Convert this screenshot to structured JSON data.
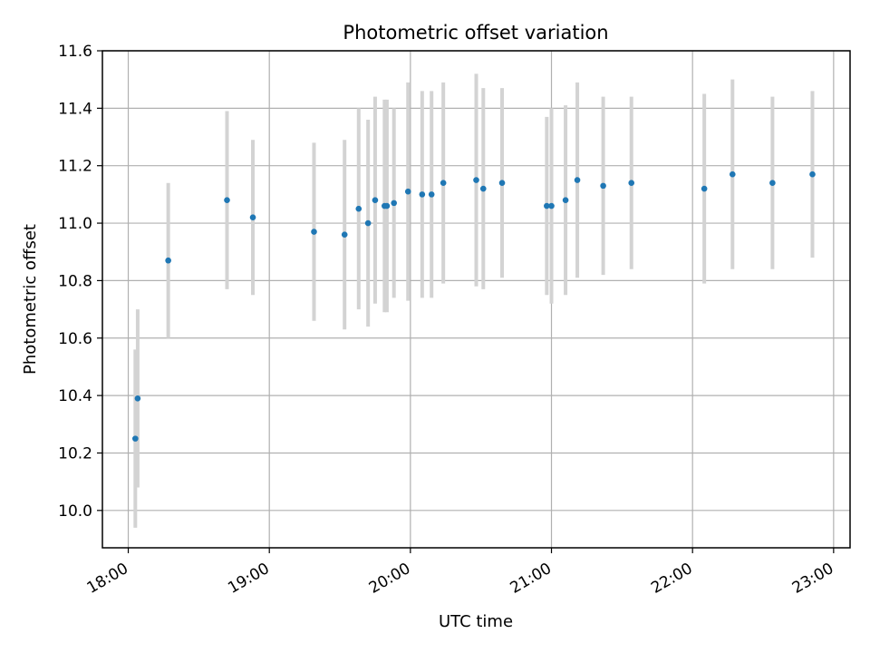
{
  "chart_data": {
    "type": "scatter",
    "title": "Photometric offset variation",
    "xlabel": "UTC time",
    "ylabel": "Photometric offset",
    "x_unit": "UTC time (HH:MM)",
    "xlim": [
      "17:49",
      "23:07"
    ],
    "ylim": [
      9.87,
      11.6
    ],
    "x_ticks": [
      "18:00",
      "19:00",
      "20:00",
      "21:00",
      "22:00",
      "23:00"
    ],
    "y_ticks": [
      "10.0",
      "10.2",
      "10.4",
      "10.6",
      "10.8",
      "11.0",
      "11.2",
      "11.4",
      "11.6"
    ],
    "grid": true,
    "marker_color": "#1f77b4",
    "errorbar_color": "#d3d3d3",
    "series": [
      {
        "points": [
          {
            "x": "18:03",
            "y": 10.25,
            "yerr": 0.31
          },
          {
            "x": "18:04",
            "y": 10.39,
            "yerr": 0.31
          },
          {
            "x": "18:17",
            "y": 10.87,
            "yerr": 0.27
          },
          {
            "x": "18:42",
            "y": 11.08,
            "yerr": 0.31
          },
          {
            "x": "18:53",
            "y": 11.02,
            "yerr": 0.27
          },
          {
            "x": "19:19",
            "y": 10.97,
            "yerr": 0.31
          },
          {
            "x": "19:32",
            "y": 10.96,
            "yerr": 0.33
          },
          {
            "x": "19:38",
            "y": 11.05,
            "yerr": 0.35
          },
          {
            "x": "19:42",
            "y": 11.0,
            "yerr": 0.36
          },
          {
            "x": "19:45",
            "y": 11.08,
            "yerr": 0.36
          },
          {
            "x": "19:49",
            "y": 11.06,
            "yerr": 0.37
          },
          {
            "x": "19:50",
            "y": 11.06,
            "yerr": 0.37
          },
          {
            "x": "19:53",
            "y": 11.07,
            "yerr": 0.33
          },
          {
            "x": "19:59",
            "y": 11.11,
            "yerr": 0.38
          },
          {
            "x": "20:05",
            "y": 11.1,
            "yerr": 0.36
          },
          {
            "x": "20:09",
            "y": 11.1,
            "yerr": 0.36
          },
          {
            "x": "20:14",
            "y": 11.14,
            "yerr": 0.35
          },
          {
            "x": "20:28",
            "y": 11.15,
            "yerr": 0.37
          },
          {
            "x": "20:31",
            "y": 11.12,
            "yerr": 0.35
          },
          {
            "x": "20:39",
            "y": 11.14,
            "yerr": 0.33
          },
          {
            "x": "20:58",
            "y": 11.06,
            "yerr": 0.31
          },
          {
            "x": "21:00",
            "y": 11.06,
            "yerr": 0.34
          },
          {
            "x": "21:06",
            "y": 11.08,
            "yerr": 0.33
          },
          {
            "x": "21:11",
            "y": 11.15,
            "yerr": 0.34
          },
          {
            "x": "21:22",
            "y": 11.13,
            "yerr": 0.31
          },
          {
            "x": "21:34",
            "y": 11.14,
            "yerr": 0.3
          },
          {
            "x": "22:05",
            "y": 11.12,
            "yerr": 0.33
          },
          {
            "x": "22:17",
            "y": 11.17,
            "yerr": 0.33
          },
          {
            "x": "22:34",
            "y": 11.14,
            "yerr": 0.3
          },
          {
            "x": "22:51",
            "y": 11.17,
            "yerr": 0.29
          }
        ]
      }
    ]
  }
}
